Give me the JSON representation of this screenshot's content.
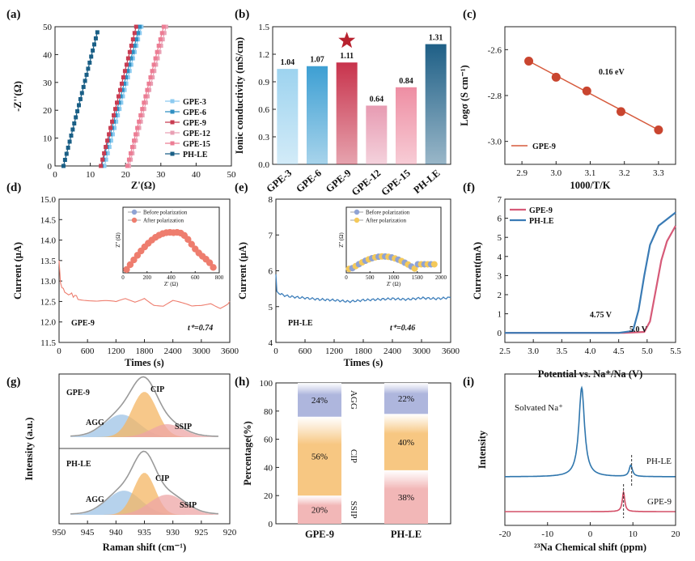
{
  "figure": {
    "panels": [
      {
        "id": "a",
        "letter": "(a)",
        "type": "line",
        "x_label": "Z'(Ω)",
        "y_label": "-Z''(Ω)"
      },
      {
        "id": "b",
        "letter": "(b)",
        "type": "bar",
        "y_label": "Ionic conductivity (mS/cm)"
      },
      {
        "id": "c",
        "letter": "(c)",
        "type": "line",
        "x_label": "1000/T/K",
        "y_label": "Logσ (S cm⁻¹)"
      },
      {
        "id": "d",
        "letter": "(d)",
        "type": "line",
        "x_label": "Times (s)",
        "y_label": "Current (μA)"
      },
      {
        "id": "e",
        "letter": "(e)",
        "type": "line",
        "x_label": "Times (s)",
        "y_label": "Current (μA)"
      },
      {
        "id": "f",
        "letter": "(f)",
        "type": "line",
        "x_label": "Potential vs. Na⁺/Na (V)",
        "y_label": "Current(mA)"
      },
      {
        "id": "g",
        "letter": "(g)",
        "type": "area",
        "x_label": "Raman shift (cm⁻¹)",
        "y_label": "Intensity (a.u.)"
      },
      {
        "id": "h",
        "letter": "(h)",
        "type": "bar",
        "y_label": "Percentage(%)"
      },
      {
        "id": "i",
        "letter": "(i)",
        "type": "line",
        "x_label": "²³Na Chemical shift (ppm)",
        "y_label": "Intensity"
      }
    ]
  },
  "chart_data": [
    {
      "panel": "a",
      "type": "line",
      "xlabel": "Z'(Ω)",
      "ylabel": "-Z''(Ω)",
      "xlim": [
        0,
        50
      ],
      "ylim": [
        0,
        50
      ],
      "xticks": [
        0,
        10,
        20,
        30,
        40,
        50
      ],
      "yticks": [
        0,
        10,
        20,
        30,
        40,
        50
      ],
      "legend_position": "bottom-right",
      "series": [
        {
          "name": "GPE-3",
          "color": "#8ccbf0",
          "marker": "square",
          "x": [
            14.0,
            24.5
          ],
          "y": [
            0,
            50
          ]
        },
        {
          "name": "GPE-6",
          "color": "#2f8fc2",
          "marker": "square",
          "x": [
            13.2,
            24.0
          ],
          "y": [
            0,
            50
          ]
        },
        {
          "name": "GPE-9",
          "color": "#c83c52",
          "marker": "square",
          "x": [
            13.0,
            23.0
          ],
          "y": [
            0,
            50
          ]
        },
        {
          "name": "GPE-12",
          "color": "#e9a0b4",
          "marker": "square",
          "x": [
            21.0,
            31.5
          ],
          "y": [
            0,
            50
          ]
        },
        {
          "name": "GPE-15",
          "color": "#ec7d94",
          "marker": "square",
          "x": [
            20.5,
            30.8
          ],
          "y": [
            0,
            50
          ]
        },
        {
          "name": "PH-LE",
          "color": "#1a5f86",
          "marker": "square",
          "x": [
            2.4,
            12.0
          ],
          "y": [
            0,
            48
          ]
        }
      ]
    },
    {
      "panel": "b",
      "type": "bar",
      "ylabel": "Ionic conductivity (mS/cm)",
      "ylim": [
        0,
        1.5
      ],
      "yticks": [
        0.0,
        0.3,
        0.6,
        0.9,
        1.2,
        1.5
      ],
      "categories": [
        "GPE-3",
        "GPE-6",
        "GPE-9",
        "GPE-12",
        "GPE-15",
        "PH-LE"
      ],
      "values": [
        1.04,
        1.07,
        1.11,
        0.64,
        0.84,
        1.31
      ],
      "value_labels": [
        "1.04",
        "1.07",
        "1.11",
        "0.64",
        "0.84",
        "1.31"
      ],
      "colors": [
        "#9dd3ef",
        "#3d9fd3",
        "#c8334c",
        "#e79bb2",
        "#ee8ea3",
        "#1e5f86"
      ],
      "highlight": "GPE-9"
    },
    {
      "panel": "c",
      "type": "line",
      "xlabel": "1000/T/K",
      "ylabel": "Logσ (S cm⁻¹)",
      "xlim": [
        2.85,
        3.35
      ],
      "ylim": [
        -3.1,
        -2.5
      ],
      "xticks": [
        2.9,
        3.0,
        3.1,
        3.2,
        3.3
      ],
      "yticks": [
        -2.6,
        -2.8,
        -3.0
      ],
      "annotation": "0.16 eV",
      "legend_position": "bottom-left",
      "series": [
        {
          "name": "GPE-9",
          "color": "#d65a3c",
          "x": [
            2.92,
            3.0,
            3.09,
            3.19,
            3.3
          ],
          "y": [
            -2.65,
            -2.72,
            -2.78,
            -2.87,
            -2.95
          ]
        }
      ]
    },
    {
      "panel": "d",
      "type": "line",
      "xlabel": "Times (s)",
      "ylabel": "Current (μA)",
      "xlim": [
        0,
        3600
      ],
      "ylim": [
        11.5,
        15.0
      ],
      "xticks": [
        0,
        600,
        1200,
        1800,
        2400,
        3000,
        3600
      ],
      "yticks": [
        11.5,
        12.0,
        12.5,
        13.0,
        13.5,
        14.0,
        14.5,
        15.0
      ],
      "label": "GPE-9",
      "transference": "t⁺=0.74",
      "series": [
        {
          "name": "GPE-9",
          "color": "#ee7d6e",
          "x": [
            0,
            30,
            60,
            120,
            200,
            300,
            400,
            600,
            800,
            1000,
            1200,
            1400,
            1600,
            1800,
            2000,
            2200,
            2400,
            2600,
            2800,
            3000,
            3200,
            3400,
            3600
          ],
          "y": [
            13.5,
            12.95,
            12.85,
            12.75,
            12.7,
            12.65,
            12.6,
            12.55,
            12.5,
            12.48,
            12.45,
            12.55,
            12.5,
            12.62,
            12.45,
            12.4,
            12.5,
            12.42,
            12.35,
            12.4,
            12.48,
            12.38,
            12.5
          ]
        }
      ],
      "inset": {
        "xlabel": "Z' (Ω)",
        "ylabel": "Z'' (Ω)",
        "xlim": [
          0,
          800
        ],
        "xticks": [
          0,
          200,
          400,
          600,
          800
        ],
        "legend": [
          "Before polarization",
          "After polarization"
        ],
        "legend_colors": [
          "#8fa3d4",
          "#ee7d6e"
        ]
      }
    },
    {
      "panel": "e",
      "type": "line",
      "xlabel": "Times (s)",
      "ylabel": "Current (μA)",
      "xlim": [
        0,
        3600
      ],
      "ylim": [
        4,
        8
      ],
      "xticks": [
        0,
        600,
        1200,
        1800,
        2400,
        3000,
        3600
      ],
      "yticks": [
        4,
        5,
        6,
        7,
        8
      ],
      "label": "PH-LE",
      "transference": "t⁺=0.46",
      "series": [
        {
          "name": "PH-LE",
          "color": "#3e7fbb",
          "x": [
            0,
            20,
            60,
            150,
            300,
            450,
            600,
            900,
            1200,
            1500,
            1800,
            2100,
            2400,
            2700,
            3000,
            3300,
            3600
          ],
          "y": [
            5.9,
            5.45,
            5.38,
            5.32,
            5.28,
            5.26,
            5.24,
            5.2,
            5.18,
            5.14,
            5.18,
            5.2,
            5.22,
            5.2,
            5.24,
            5.22,
            5.25
          ]
        }
      ],
      "inset": {
        "xlabel": "Z' (Ω)",
        "ylabel": "Z'' (Ω)",
        "xlim": [
          0,
          2000
        ],
        "xticks": [
          0,
          500,
          1000,
          1500,
          2000
        ],
        "legend": [
          "Before polarization",
          "After polarization"
        ],
        "legend_colors": [
          "#8fa3d4",
          "#f4c95a"
        ]
      }
    },
    {
      "panel": "f",
      "type": "line",
      "xlabel": "Potential vs. Na⁺/Na (V)",
      "ylabel": "Current(mA)",
      "xlim": [
        2.5,
        5.5
      ],
      "ylim": [
        -0.5,
        7
      ],
      "xticks": [
        2.5,
        3.0,
        3.5,
        4.0,
        4.5,
        5.0,
        5.5
      ],
      "yticks": [
        0,
        1,
        2,
        3,
        4,
        5,
        6,
        7
      ],
      "legend_position": "top-left",
      "annotations": [
        "4.75 V",
        "5.0 V"
      ],
      "series": [
        {
          "name": "GPE-9",
          "color": "#d65a78",
          "x": [
            2.5,
            4.6,
            4.95,
            5.05,
            5.15,
            5.25,
            5.35,
            5.5
          ],
          "y": [
            0,
            0,
            0.05,
            0.6,
            2.2,
            3.8,
            4.8,
            5.6
          ]
        },
        {
          "name": "PH-LE",
          "color": "#3a7bb5",
          "x": [
            2.5,
            4.5,
            4.75,
            4.85,
            4.95,
            5.05,
            5.2,
            5.5
          ],
          "y": [
            0,
            0,
            0.1,
            1.2,
            3.0,
            4.6,
            5.6,
            6.3
          ]
        }
      ]
    },
    {
      "panel": "g",
      "type": "area",
      "xlabel": "Raman shift (cm⁻¹)",
      "ylabel": "Intensity (a.u.)",
      "xlim": [
        950,
        920
      ],
      "xticks": [
        950,
        945,
        940,
        935,
        930,
        925,
        920
      ],
      "series": [
        {
          "name": "GPE-9",
          "components": [
            "AGG",
            "CIP",
            "SSIP"
          ]
        },
        {
          "name": "PH-LE",
          "components": [
            "AGG",
            "CIP",
            "SSIP"
          ]
        }
      ],
      "component_colors": {
        "AGG": "#9dc3e6",
        "CIP": "#f4b563",
        "SSIP": "#eda5a5"
      }
    },
    {
      "panel": "h",
      "type": "bar",
      "ylabel": "Percentage(%)",
      "ylim": [
        0,
        100
      ],
      "yticks": [
        0,
        20,
        40,
        60,
        80,
        100
      ],
      "categories": [
        "GPE-9",
        "PH-LE"
      ],
      "series": [
        {
          "name": "SSIP",
          "values": [
            20,
            38
          ],
          "labels": [
            "20%",
            "38%"
          ],
          "color": "#f2b7b7"
        },
        {
          "name": "CIP",
          "values": [
            56,
            40
          ],
          "labels": [
            "56%",
            "40%"
          ],
          "color": "#f7c782"
        },
        {
          "name": "AGG",
          "values": [
            24,
            22
          ],
          "labels": [
            "24%",
            "22%"
          ],
          "color": "#aeb6dd"
        }
      ]
    },
    {
      "panel": "i",
      "type": "line",
      "xlabel": "²³Na Chemical shift (ppm)",
      "ylabel": "Intensity",
      "xlim": [
        -20,
        20
      ],
      "xticks": [
        -20,
        -10,
        0,
        10,
        20
      ],
      "annotation": "Solvated Na⁺",
      "series": [
        {
          "name": "PH-LE",
          "color": "#2f76ad",
          "peaks": [
            -2,
            9.5
          ]
        },
        {
          "name": "GPE-9",
          "color": "#d45068",
          "peaks": [
            7.8
          ]
        }
      ]
    }
  ]
}
